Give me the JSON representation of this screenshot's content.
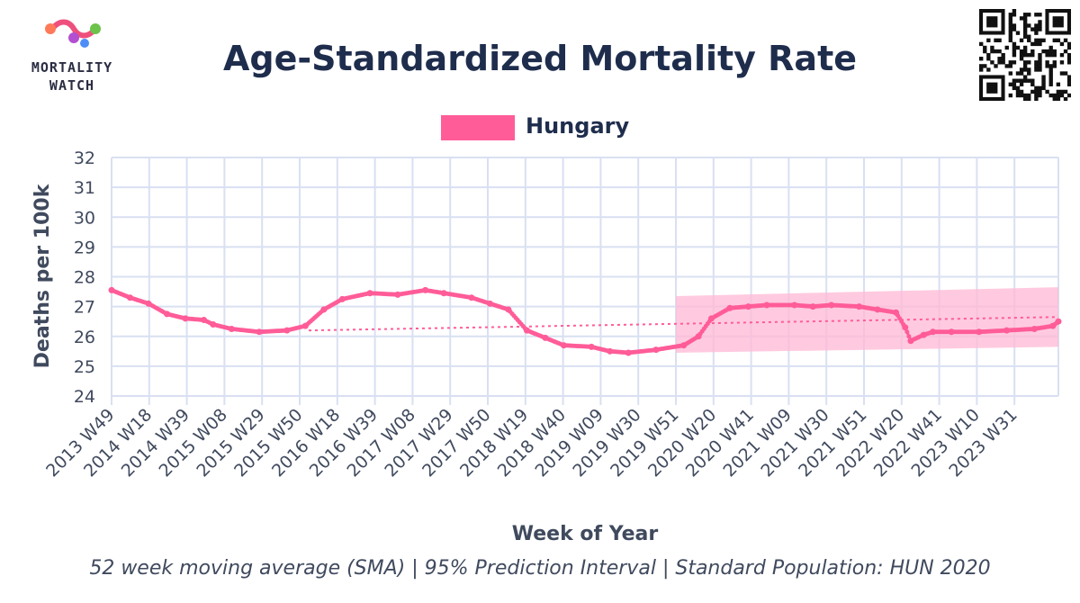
{
  "logo": {
    "line1": "MORTALITY",
    "line2": "WATCH",
    "icon": "mortality-watch-logo"
  },
  "qr_icon": "qr-code-icon",
  "colors": {
    "series": "#ff5c98",
    "band": "#ffb8d4",
    "title": "#1f2d4d",
    "axis_text": "#404a5e",
    "grid": "#d9e0f2"
  },
  "chart_data": {
    "type": "line",
    "title": "Age-Standardized Mortality Rate",
    "xlabel": "Week of Year",
    "ylabel": "Deaths per 100k",
    "caption": "52 week moving average (SMA) | 95% Prediction Interval | Standard Population: HUN 2020",
    "ylim": [
      24,
      32
    ],
    "yticks": [
      24,
      25,
      26,
      27,
      28,
      29,
      30,
      31,
      32
    ],
    "grid": true,
    "legend_position": "top-center",
    "xticks": [
      "2013 W49",
      "2014 W18",
      "2014 W39",
      "2015 W08",
      "2015 W29",
      "2015 W50",
      "2016 W18",
      "2016 W39",
      "2017 W08",
      "2017 W29",
      "2017 W50",
      "2018 W19",
      "2018 W40",
      "2019 W09",
      "2019 W30",
      "2019 W51",
      "2020 W20",
      "2020 W41",
      "2021 W09",
      "2021 W30",
      "2021 W51",
      "2022 W20",
      "2022 W41",
      "2023 W10",
      "2023 W31"
    ],
    "x_range_weeks_after_2013_W49": [
      0,
      513
    ],
    "series": [
      {
        "name": "Hungary",
        "points": [
          [
            0,
            27.55
          ],
          [
            10,
            27.3
          ],
          [
            20,
            27.1
          ],
          [
            30,
            26.75
          ],
          [
            40,
            26.6
          ],
          [
            50,
            26.55
          ],
          [
            55,
            26.4
          ],
          [
            65,
            26.25
          ],
          [
            80,
            26.15
          ],
          [
            95,
            26.2
          ],
          [
            105,
            26.35
          ],
          [
            115,
            26.9
          ],
          [
            125,
            27.25
          ],
          [
            140,
            27.45
          ],
          [
            155,
            27.4
          ],
          [
            170,
            27.55
          ],
          [
            180,
            27.45
          ],
          [
            195,
            27.3
          ],
          [
            205,
            27.1
          ],
          [
            215,
            26.9
          ],
          [
            225,
            26.2
          ],
          [
            235,
            25.95
          ],
          [
            245,
            25.7
          ],
          [
            260,
            25.65
          ],
          [
            270,
            25.5
          ],
          [
            280,
            25.45
          ],
          [
            295,
            25.55
          ],
          [
            310,
            25.7
          ],
          [
            318,
            26.0
          ],
          [
            325,
            26.6
          ],
          [
            335,
            26.95
          ],
          [
            345,
            27.0
          ],
          [
            355,
            27.05
          ],
          [
            370,
            27.05
          ],
          [
            380,
            27.0
          ],
          [
            390,
            27.05
          ],
          [
            405,
            27.0
          ],
          [
            415,
            26.9
          ],
          [
            425,
            26.8
          ],
          [
            430,
            26.3
          ],
          [
            433,
            25.85
          ],
          [
            440,
            26.05
          ],
          [
            445,
            26.15
          ],
          [
            455,
            26.15
          ],
          [
            470,
            26.15
          ],
          [
            485,
            26.2
          ],
          [
            500,
            26.25
          ],
          [
            510,
            26.35
          ],
          [
            513,
            26.5
          ]
        ]
      }
    ],
    "trend": {
      "x": [
        0,
        513
      ],
      "y": [
        26.2,
        26.65
      ]
    },
    "prediction_interval": {
      "x": [
        0,
        513
      ],
      "lower": [
        25.45,
        25.65
      ],
      "upper": [
        27.35,
        27.65
      ]
    }
  }
}
